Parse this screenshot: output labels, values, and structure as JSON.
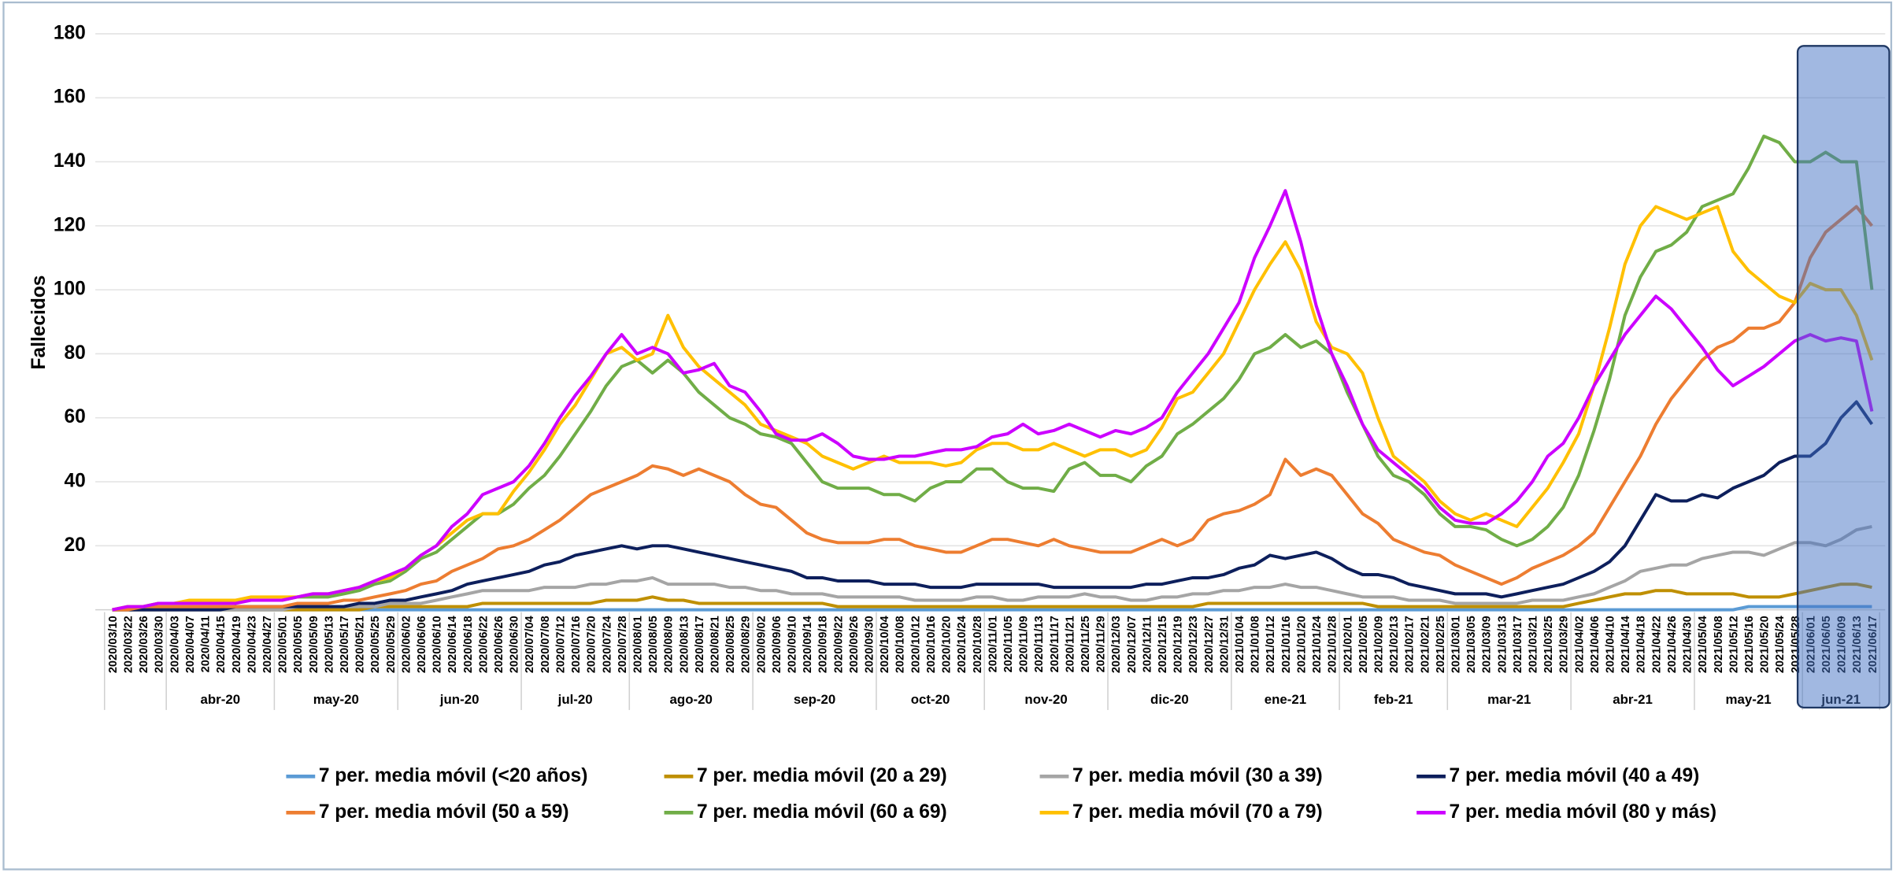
{
  "chart_data": {
    "type": "line",
    "y_label": "Fallecidos",
    "ylim": [
      0,
      180
    ],
    "yticks": [
      20,
      40,
      60,
      80,
      100,
      120,
      140,
      160,
      180
    ],
    "grid": true,
    "categories": [
      "2020/03/10",
      "2020/03/22",
      "2020/03/26",
      "2020/03/30",
      "2020/04/03",
      "2020/04/07",
      "2020/04/11",
      "2020/04/15",
      "2020/04/19",
      "2020/04/23",
      "2020/04/27",
      "2020/05/01",
      "2020/05/05",
      "2020/05/09",
      "2020/05/13",
      "2020/05/17",
      "2020/05/21",
      "2020/05/25",
      "2020/05/29",
      "2020/06/02",
      "2020/06/06",
      "2020/06/10",
      "2020/06/14",
      "2020/06/18",
      "2020/06/22",
      "2020/06/26",
      "2020/06/30",
      "2020/07/04",
      "2020/07/08",
      "2020/07/12",
      "2020/07/16",
      "2020/07/20",
      "2020/07/24",
      "2020/07/28",
      "2020/08/01",
      "2020/08/05",
      "2020/08/09",
      "2020/08/13",
      "2020/08/17",
      "2020/08/21",
      "2020/08/25",
      "2020/08/29",
      "2020/09/02",
      "2020/09/06",
      "2020/09/10",
      "2020/09/14",
      "2020/09/18",
      "2020/09/22",
      "2020/09/26",
      "2020/09/30",
      "2020/10/04",
      "2020/10/08",
      "2020/10/12",
      "2020/10/16",
      "2020/10/20",
      "2020/10/24",
      "2020/10/28",
      "2020/11/01",
      "2020/11/05",
      "2020/11/09",
      "2020/11/13",
      "2020/11/17",
      "2020/11/21",
      "2020/11/25",
      "2020/11/29",
      "2020/12/03",
      "2020/12/07",
      "2020/12/11",
      "2020/12/15",
      "2020/12/19",
      "2020/12/23",
      "2020/12/27",
      "2020/12/31",
      "2021/01/04",
      "2021/01/08",
      "2021/01/12",
      "2021/01/16",
      "2021/01/20",
      "2021/01/24",
      "2021/01/28",
      "2021/02/01",
      "2021/02/05",
      "2021/02/09",
      "2021/02/13",
      "2021/02/17",
      "2021/02/21",
      "2021/02/25",
      "2021/03/01",
      "2021/03/05",
      "2021/03/09",
      "2021/03/13",
      "2021/03/17",
      "2021/03/21",
      "2021/03/25",
      "2021/03/29",
      "2021/04/02",
      "2021/04/06",
      "2021/04/10",
      "2021/04/14",
      "2021/04/18",
      "2021/04/22",
      "2021/04/26",
      "2021/04/30",
      "2021/05/04",
      "2021/05/08",
      "2021/05/12",
      "2021/05/16",
      "2021/05/20",
      "2021/05/24",
      "2021/05/28",
      "2021/06/01",
      "2021/06/05",
      "2021/06/09",
      "2021/06/13",
      "2021/06/17"
    ],
    "month_labels": [
      null,
      "abr-20",
      "may-20",
      "jun-20",
      "jul-20",
      "ago-20",
      "sep-20",
      "oct-20",
      "nov-20",
      "dic-20",
      "ene-21",
      "feb-21",
      "mar-21",
      "abr-21",
      "may-21",
      "jun-21"
    ],
    "series": [
      {
        "name": "7 per. media móvil (<20 años)",
        "color": "#5b9bd5",
        "values": [
          0,
          0,
          0,
          0,
          0,
          0,
          0,
          0,
          0,
          0,
          0,
          0,
          0,
          0,
          0,
          0,
          0,
          0,
          0,
          0,
          0,
          0,
          0,
          0,
          0,
          0,
          0,
          0,
          0,
          0,
          0,
          0,
          0,
          0,
          0,
          0,
          0,
          0,
          0,
          0,
          0,
          0,
          0,
          0,
          0,
          0,
          0,
          0,
          0,
          0,
          0,
          0,
          0,
          0,
          0,
          0,
          0,
          0,
          0,
          0,
          0,
          0,
          0,
          0,
          0,
          0,
          0,
          0,
          0,
          0,
          0,
          0,
          0,
          0,
          0,
          0,
          0,
          0,
          0,
          0,
          0,
          0,
          0,
          0,
          0,
          0,
          0,
          0,
          0,
          0,
          0,
          0,
          0,
          0,
          0,
          0,
          0,
          0,
          0,
          0,
          0,
          0,
          0,
          0,
          0,
          0,
          1,
          1,
          1,
          1,
          1,
          1,
          1,
          1,
          1
        ]
      },
      {
        "name": "7 per. media móvil (20 a 29)",
        "color": "#bf8f00",
        "values": [
          0,
          0,
          0,
          0,
          0,
          0,
          0,
          0,
          0,
          0,
          0,
          0,
          0,
          0,
          0,
          0,
          0,
          1,
          1,
          1,
          1,
          1,
          1,
          1,
          2,
          2,
          2,
          2,
          2,
          2,
          2,
          2,
          3,
          3,
          3,
          4,
          3,
          3,
          2,
          2,
          2,
          2,
          2,
          2,
          2,
          2,
          2,
          1,
          1,
          1,
          1,
          1,
          1,
          1,
          1,
          1,
          1,
          1,
          1,
          1,
          1,
          1,
          1,
          1,
          1,
          1,
          1,
          1,
          1,
          1,
          1,
          2,
          2,
          2,
          2,
          2,
          2,
          2,
          2,
          2,
          2,
          2,
          1,
          1,
          1,
          1,
          1,
          1,
          1,
          1,
          1,
          1,
          1,
          1,
          1,
          2,
          3,
          4,
          5,
          5,
          6,
          6,
          5,
          5,
          5,
          5,
          4,
          4,
          4,
          5,
          6,
          7,
          8,
          8,
          7
        ]
      },
      {
        "name": "7 per. media móvil (30 a 39)",
        "color": "#a5a5a5",
        "values": [
          0,
          0,
          0,
          0,
          0,
          0,
          0,
          0,
          0,
          0,
          0,
          0,
          1,
          1,
          1,
          1,
          1,
          1,
          2,
          2,
          2,
          3,
          4,
          5,
          6,
          6,
          6,
          6,
          7,
          7,
          7,
          8,
          8,
          9,
          9,
          10,
          8,
          8,
          8,
          8,
          7,
          7,
          6,
          6,
          5,
          5,
          5,
          4,
          4,
          4,
          4,
          4,
          3,
          3,
          3,
          3,
          4,
          4,
          3,
          3,
          4,
          4,
          4,
          5,
          4,
          4,
          3,
          3,
          4,
          4,
          5,
          5,
          6,
          6,
          7,
          7,
          8,
          7,
          7,
          6,
          5,
          4,
          4,
          4,
          3,
          3,
          3,
          2,
          2,
          2,
          2,
          2,
          3,
          3,
          3,
          4,
          5,
          7,
          9,
          12,
          13,
          14,
          14,
          16,
          17,
          18,
          18,
          17,
          19,
          21,
          21,
          20,
          22,
          25,
          26
        ]
      },
      {
        "name": "7 per. media móvil (40 a 49)",
        "color": "#0d1f5c",
        "values": [
          0,
          0,
          0,
          0,
          0,
          0,
          0,
          0,
          1,
          1,
          1,
          1,
          1,
          1,
          1,
          1,
          2,
          2,
          3,
          3,
          4,
          5,
          6,
          8,
          9,
          10,
          11,
          12,
          14,
          15,
          17,
          18,
          19,
          20,
          19,
          20,
          20,
          19,
          18,
          17,
          16,
          15,
          14,
          13,
          12,
          10,
          10,
          9,
          9,
          9,
          8,
          8,
          8,
          7,
          7,
          7,
          8,
          8,
          8,
          8,
          8,
          7,
          7,
          7,
          7,
          7,
          7,
          8,
          8,
          9,
          10,
          10,
          11,
          13,
          14,
          17,
          16,
          17,
          18,
          16,
          13,
          11,
          11,
          10,
          8,
          7,
          6,
          5,
          5,
          5,
          4,
          5,
          6,
          7,
          8,
          10,
          12,
          15,
          20,
          28,
          36,
          34,
          34,
          36,
          35,
          38,
          40,
          42,
          46,
          48,
          48,
          52,
          60,
          65,
          58
        ]
      },
      {
        "name": "7 per. media móvil (50 a 59)",
        "color": "#ed7d31",
        "values": [
          0,
          0,
          1,
          1,
          1,
          1,
          1,
          1,
          1,
          1,
          1,
          1,
          2,
          2,
          2,
          3,
          3,
          4,
          5,
          6,
          8,
          9,
          12,
          14,
          16,
          19,
          20,
          22,
          25,
          28,
          32,
          36,
          38,
          40,
          42,
          45,
          44,
          42,
          44,
          42,
          40,
          36,
          33,
          32,
          28,
          24,
          22,
          21,
          21,
          21,
          22,
          22,
          20,
          19,
          18,
          18,
          20,
          22,
          22,
          21,
          20,
          22,
          20,
          19,
          18,
          18,
          18,
          20,
          22,
          20,
          22,
          28,
          30,
          31,
          33,
          36,
          47,
          42,
          44,
          42,
          36,
          30,
          27,
          22,
          20,
          18,
          17,
          14,
          12,
          10,
          8,
          10,
          13,
          15,
          17,
          20,
          24,
          32,
          40,
          48,
          58,
          66,
          72,
          78,
          82,
          84,
          88,
          88,
          90,
          96,
          110,
          118,
          122,
          126,
          120
        ]
      },
      {
        "name": "7 per. media móvil (60 a 69)",
        "color": "#70ad47",
        "values": [
          0,
          1,
          1,
          2,
          2,
          2,
          2,
          3,
          3,
          3,
          3,
          3,
          4,
          4,
          4,
          5,
          6,
          8,
          9,
          12,
          16,
          18,
          22,
          26,
          30,
          30,
          33,
          38,
          42,
          48,
          55,
          62,
          70,
          76,
          78,
          74,
          78,
          74,
          68,
          64,
          60,
          58,
          55,
          54,
          52,
          46,
          40,
          38,
          38,
          38,
          36,
          36,
          34,
          38,
          40,
          40,
          44,
          44,
          40,
          38,
          38,
          37,
          44,
          46,
          42,
          42,
          40,
          45,
          48,
          55,
          58,
          62,
          66,
          72,
          80,
          82,
          86,
          82,
          84,
          80,
          68,
          58,
          48,
          42,
          40,
          36,
          30,
          26,
          26,
          25,
          22,
          20,
          22,
          26,
          32,
          42,
          56,
          72,
          92,
          104,
          112,
          114,
          118,
          126,
          128,
          130,
          138,
          148,
          146,
          140,
          140,
          143,
          140,
          140,
          100
        ]
      },
      {
        "name": "7 per. media móvil (70 a 79)",
        "color": "#ffc000",
        "values": [
          0,
          1,
          1,
          2,
          2,
          3,
          3,
          3,
          3,
          4,
          4,
          4,
          4,
          5,
          5,
          6,
          7,
          9,
          10,
          13,
          17,
          20,
          24,
          28,
          30,
          30,
          37,
          43,
          50,
          58,
          64,
          72,
          80,
          82,
          78,
          80,
          92,
          82,
          76,
          72,
          68,
          64,
          58,
          56,
          54,
          52,
          48,
          46,
          44,
          46,
          48,
          46,
          46,
          46,
          45,
          46,
          50,
          52,
          52,
          50,
          50,
          52,
          50,
          48,
          50,
          50,
          48,
          50,
          57,
          66,
          68,
          74,
          80,
          90,
          100,
          108,
          115,
          106,
          90,
          82,
          80,
          74,
          60,
          48,
          44,
          40,
          34,
          30,
          28,
          30,
          28,
          26,
          32,
          38,
          46,
          55,
          70,
          88,
          108,
          120,
          126,
          124,
          122,
          124,
          126,
          112,
          106,
          102,
          98,
          96,
          102,
          100,
          100,
          92,
          78
        ]
      },
      {
        "name": "7 per. media móvil (80 y más)",
        "color": "#cc00ff",
        "values": [
          0,
          1,
          1,
          2,
          2,
          2,
          2,
          2,
          2,
          3,
          3,
          3,
          4,
          5,
          5,
          6,
          7,
          9,
          11,
          13,
          17,
          20,
          26,
          30,
          36,
          38,
          40,
          45,
          52,
          60,
          67,
          73,
          80,
          86,
          80,
          82,
          80,
          74,
          75,
          77,
          70,
          68,
          62,
          55,
          53,
          53,
          55,
          52,
          48,
          47,
          47,
          48,
          48,
          49,
          50,
          50,
          51,
          54,
          55,
          58,
          55,
          56,
          58,
          56,
          54,
          56,
          55,
          57,
          60,
          68,
          74,
          80,
          88,
          96,
          110,
          120,
          131,
          115,
          95,
          80,
          70,
          58,
          50,
          46,
          42,
          38,
          32,
          28,
          27,
          27,
          30,
          34,
          40,
          48,
          52,
          60,
          70,
          78,
          86,
          92,
          98,
          94,
          88,
          82,
          75,
          70,
          73,
          76,
          80,
          84,
          86,
          84,
          85,
          84,
          62
        ]
      }
    ]
  }
}
